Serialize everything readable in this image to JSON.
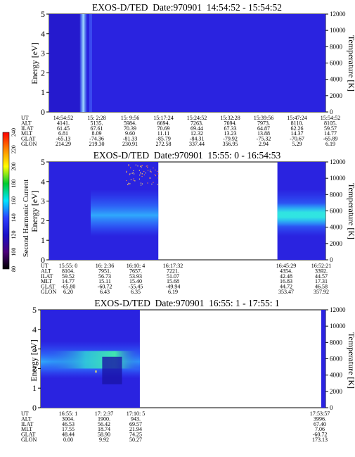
{
  "figure_title": "",
  "colorbar": {
    "label": "Second Harmonic Current",
    "ticks": [
      "80",
      "100",
      "120",
      "140",
      "160",
      "180",
      "200",
      "220",
      "240"
    ],
    "colors": [
      "#000000",
      "#4b007a",
      "#1a10c8",
      "#2d40ff",
      "#00e6ff",
      "#00cc33",
      "#ffff00",
      "#ff8800",
      "#ff0000"
    ]
  },
  "chart_data": [
    {
      "type": "heatmap",
      "title": "EXOS-D/TED  Date:970901  14:54:52 - 15:54:52",
      "ylabel": "Energy [eV]",
      "ylabel_right": "Temperature [K]",
      "ylim": [
        0,
        5
      ],
      "yticks": [
        "0",
        "1",
        "2",
        "3",
        "4",
        "5"
      ],
      "ylim_right": [
        0,
        12000
      ],
      "yticks_right": [
        "0",
        "2000",
        "4000",
        "6000",
        "8000",
        "10000",
        "12000"
      ],
      "data_coverage": [
        [
          0.0,
          1.0
        ]
      ],
      "background": "#2a23e0",
      "ephemeris_labels": [
        "UT",
        "ALT",
        "ILAT",
        "MLT",
        "GLAT",
        "GLON"
      ],
      "ephemeris": [
        {
          "UT": "14:54:52",
          "ALT": "4141.",
          "ILAT": "61.45",
          "MLT": "6.81",
          "GLAT": "-65.13",
          "GLON": "214.29"
        },
        {
          "UT": "15: 2:28",
          "ALT": "5135.",
          "ILAT": "67.61",
          "MLT": "8.09",
          "GLAT": "-74.36",
          "GLON": "219.30"
        },
        {
          "UT": "15: 9:56",
          "ALT": "5984.",
          "ILAT": "70.39",
          "MLT": "9.60",
          "GLAT": "-81.33",
          "GLON": "230.91"
        },
        {
          "UT": "15:17:24",
          "ALT": "6694.",
          "ILAT": "70.69",
          "MLT": "11.11",
          "GLAT": "-85.79",
          "GLON": "272.58"
        },
        {
          "UT": "15:24:52",
          "ALT": "7263.",
          "ILAT": "69.44",
          "MLT": "12.32",
          "GLAT": "-84.31",
          "GLON": "337.44"
        },
        {
          "UT": "15:32:28",
          "ALT": "7694.",
          "ILAT": "67.33",
          "MLT": "13.23",
          "GLAT": "-79.92",
          "GLON": "356.95"
        },
        {
          "UT": "15:39:56",
          "ALT": "7973.",
          "ILAT": "64.87",
          "MLT": "13.88",
          "GLAT": "-75.32",
          "GLON": "2.94"
        },
        {
          "UT": "15:47:24",
          "ALT": "8110.",
          "ILAT": "62.26",
          "MLT": "14.37",
          "GLAT": "-70.67",
          "GLON": "5.29"
        },
        {
          "UT": "15:54:52",
          "ALT": "8105.",
          "ILAT": "59.57",
          "MLT": "14.77",
          "GLAT": "-65.89",
          "GLON": "6.19"
        }
      ]
    },
    {
      "type": "heatmap",
      "title": "EXOS-D/TED  Date:970901  15:55: 0 - 16:54:53",
      "ylabel": "Energy [eV]",
      "ylabel_right": "Temperature [K]",
      "ylim": [
        0,
        5
      ],
      "yticks": [
        "0",
        "1",
        "2",
        "3",
        "4",
        "5"
      ],
      "ylim_right": [
        0,
        12000
      ],
      "yticks_right": [
        "0",
        "2000",
        "4000",
        "6000",
        "8000",
        "10000",
        "12000"
      ],
      "data_coverage": [
        [
          0.0,
          0.395
        ],
        [
          0.826,
          1.0
        ]
      ],
      "background": "#2a23e0",
      "ephemeris_labels": [
        "UT",
        "ALT",
        "ILAT",
        "MLT",
        "GLAT",
        "GLON"
      ],
      "ephemeris": [
        {
          "UT": "15:55: 0",
          "ALT": "8104.",
          "ILAT": "59.52",
          "MLT": "14.77",
          "GLAT": "-65.80",
          "GLON": "6.20"
        },
        {
          "UT": "16: 2:36",
          "ALT": "7951.",
          "ILAT": "56.73",
          "MLT": "15.11",
          "GLAT": "-60.72",
          "GLON": "6.43"
        },
        {
          "UT": "16:10: 4",
          "ALT": "7657.",
          "ILAT": "53.93",
          "MLT": "15.40",
          "GLAT": "-55.45",
          "GLON": "6.35"
        },
        {
          "UT": "16:17:32",
          "ALT": "7221.",
          "ILAT": "51.07",
          "MLT": "15.68",
          "GLAT": "-49.94",
          "GLON": "6.19"
        },
        {
          "UT": "16:45:29",
          "ALT": "4354.",
          "ILAT": "42.48",
          "MLT": "16.83",
          "GLAT": "44.72",
          "GLON": "353.47"
        },
        {
          "UT": "16:52:21",
          "ALT": "3392.",
          "ILAT": "44.57",
          "MLT": "17.31",
          "GLAT": "46.58",
          "GLON": "357.92"
        }
      ]
    },
    {
      "type": "heatmap",
      "title": "EXOS-D/TED  Date:970901  16:55: 1 - 17:55: 1",
      "ylabel": "Energy [eV]",
      "ylabel_right": "Temperature [K]",
      "ylim": [
        0,
        5
      ],
      "yticks": [
        "0",
        "1",
        "2",
        "3",
        "4",
        "5"
      ],
      "ylim_right": [
        0,
        12000
      ],
      "yticks_right": [
        "0",
        "2000",
        "4000",
        "6000",
        "8000",
        "10000",
        "12000"
      ],
      "data_coverage": [
        [
          0.0,
          0.348
        ],
        [
          0.985,
          1.0
        ]
      ],
      "background": "#2a23e0",
      "ephemeris_labels": [
        "UT",
        "ALT",
        "ILAT",
        "MLT",
        "GLAT",
        "GLON"
      ],
      "ephemeris": [
        {
          "UT": "16:55: 1",
          "ALT": "3004.",
          "ILAT": "46.53",
          "MLT": "17.55",
          "GLAT": "48.44",
          "GLON": "0.00"
        },
        {
          "UT": "17: 2:37",
          "ALT": "1900.",
          "ILAT": "56.42",
          "MLT": "18.74",
          "GLAT": "58.90",
          "GLON": "9.92"
        },
        {
          "UT": "17:10: 5",
          "ALT": "943.",
          "ILAT": "69.57",
          "MLT": "21.94",
          "GLAT": "74.25",
          "GLON": "50.27"
        },
        {
          "UT": "17:53:57",
          "ALT": "3996.",
          "ILAT": "67.40",
          "MLT": "7.06",
          "GLAT": "-60.72",
          "GLON": "173.13"
        }
      ]
    }
  ]
}
